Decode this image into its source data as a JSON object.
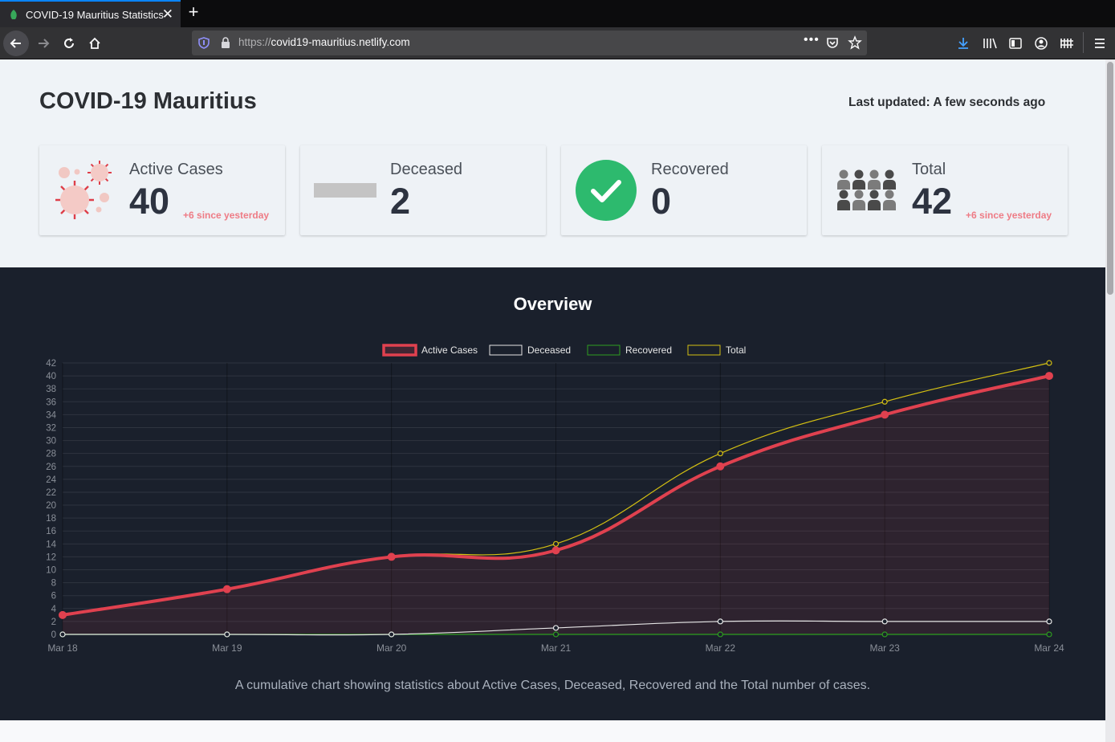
{
  "browser": {
    "tab_title": "COVID-19 Mauritius Statistics",
    "url_scheme": "https://",
    "url_host": "covid19-mauritius.netlify.com"
  },
  "page": {
    "title": "COVID-19 Mauritius",
    "last_updated": "Last updated: A few seconds ago"
  },
  "cards": [
    {
      "label": "Active Cases",
      "value": "40",
      "delta": "+6 since yesterday",
      "icon": "virus-icon"
    },
    {
      "label": "Deceased",
      "value": "2",
      "delta": "",
      "icon": "deceased-bar-icon"
    },
    {
      "label": "Recovered",
      "value": "0",
      "delta": "",
      "icon": "check-circle-icon"
    },
    {
      "label": "Total",
      "value": "42",
      "delta": "+6 since yesterday",
      "icon": "people-group-icon"
    }
  ],
  "overview": {
    "title": "Overview",
    "caption": "A cumulative chart showing statistics about Active Cases, Deceased, Recovered and the Total number of cases."
  },
  "colors": {
    "active": "#e0414f",
    "deceased": "#e5e5e5",
    "recovered": "#2f9e1f",
    "total": "#d4c012",
    "recovered_check": "#2dba6e",
    "delta": "#ee7b85"
  },
  "chart_data": {
    "type": "line",
    "x": [
      "Mar 18",
      "Mar 19",
      "Mar 20",
      "Mar 21",
      "Mar 22",
      "Mar 23",
      "Mar 24"
    ],
    "series": [
      {
        "name": "Active Cases",
        "values": [
          3,
          7,
          12,
          13,
          26,
          34,
          40
        ]
      },
      {
        "name": "Deceased",
        "values": [
          0,
          0,
          0,
          1,
          2,
          2,
          2
        ]
      },
      {
        "name": "Recovered",
        "values": [
          0,
          0,
          0,
          0,
          0,
          0,
          0
        ]
      },
      {
        "name": "Total",
        "values": [
          3,
          7,
          12,
          14,
          28,
          36,
          42
        ]
      }
    ],
    "ylim": [
      0,
      42
    ],
    "yticks": [
      0,
      2,
      4,
      6,
      8,
      10,
      12,
      14,
      16,
      18,
      20,
      22,
      24,
      26,
      28,
      30,
      32,
      34,
      36,
      38,
      40,
      42
    ],
    "legend_position": "top",
    "grid": true,
    "active_series_filled": true
  }
}
